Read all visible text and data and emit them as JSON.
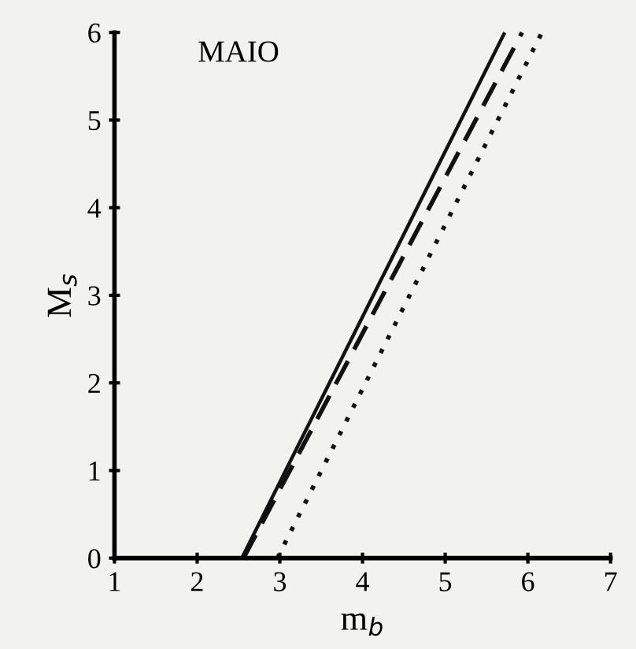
{
  "chart_data": {
    "type": "line",
    "title": "MAIO",
    "xlabel": "m$_{b}$",
    "ylabel": "M$_{s}$",
    "xlim": [
      1,
      7
    ],
    "ylim": [
      0,
      6
    ],
    "xticks": [
      1,
      2,
      3,
      4,
      5,
      6,
      7
    ],
    "yticks": [
      0,
      1,
      2,
      3,
      4,
      5,
      6
    ],
    "grid": false,
    "legend": false,
    "series": [
      {
        "color": "#111111",
        "line_style": "solid",
        "x": [
          2.54,
          5.72
        ],
        "values": [
          0,
          6
        ]
      },
      {
        "color": "#111111",
        "line_style": "dashed",
        "x": [
          2.56,
          5.93
        ],
        "values": [
          0,
          6
        ]
      },
      {
        "color": "#111111",
        "line_style": "dotted",
        "x": [
          2.97,
          6.17
        ],
        "values": [
          0,
          6
        ]
      }
    ]
  }
}
